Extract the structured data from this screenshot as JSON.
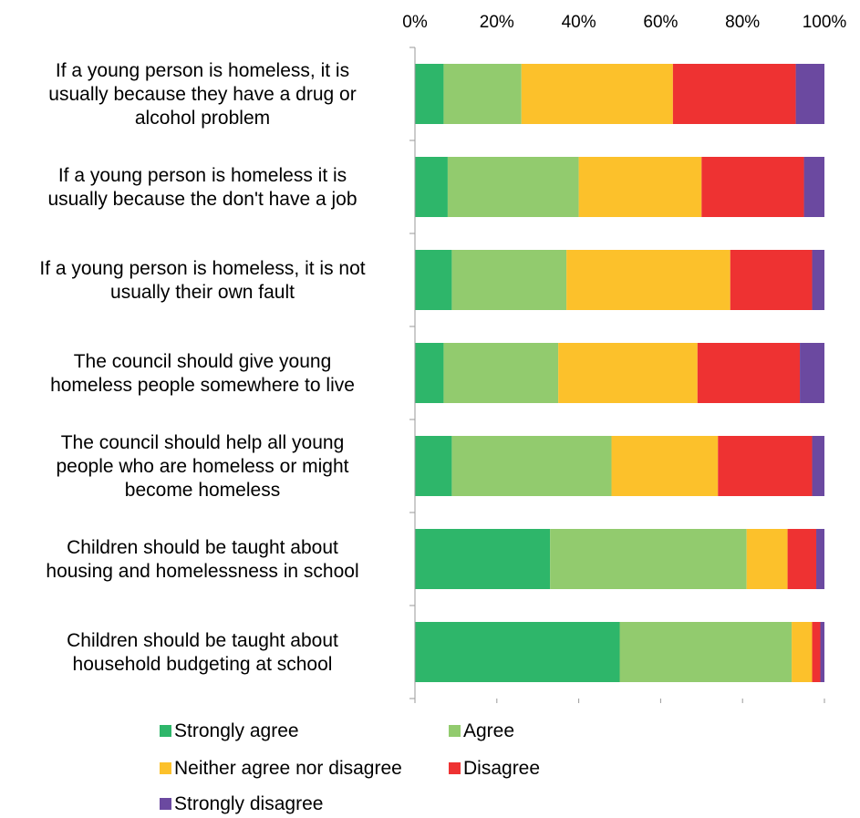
{
  "chart_data": {
    "type": "bar",
    "orientation": "horizontal",
    "stacked": "percent",
    "categories": [
      "If a young person is homeless, it is usually because they have a drug or alcohol problem",
      "If a young person is homeless it is usually because the don't have a job",
      "If a young person is homeless, it is not usually their own fault",
      "The council should give young homeless people somewhere to live",
      "The council should help all young people who are homeless or might become homeless",
      "Children should be taught about housing and homelessness in school",
      "Children should be taught about household budgeting at school"
    ],
    "category_lines": [
      [
        "If a young person is homeless, it is",
        "usually because they have a drug or",
        "alcohol problem"
      ],
      [
        "If a young person is homeless it is",
        "usually because the don't have a job"
      ],
      [
        "If a young person is homeless, it is not",
        "usually their own fault"
      ],
      [
        "The council should give young",
        "homeless people somewhere to live"
      ],
      [
        "The council should help all young",
        "people who are homeless or might",
        "become homeless"
      ],
      [
        "Children should be taught about",
        "housing and homelessness in school"
      ],
      [
        "Children should be taught about",
        "household budgeting at school"
      ]
    ],
    "series": [
      {
        "name": "Strongly agree",
        "color": "#2eb66a",
        "values": [
          7,
          8,
          9,
          7,
          9,
          33,
          50
        ]
      },
      {
        "name": "Agree",
        "color": "#92cb6e",
        "values": [
          19,
          32,
          28,
          28,
          39,
          48,
          42
        ]
      },
      {
        "name": "Neither agree nor disagree",
        "color": "#fcc12b",
        "values": [
          37,
          30,
          40,
          34,
          26,
          10,
          5
        ]
      },
      {
        "name": "Disagree",
        "color": "#ee3232",
        "values": [
          30,
          25,
          20,
          25,
          23,
          7,
          2
        ]
      },
      {
        "name": "Strongly disagree",
        "color": "#6b49a0",
        "values": [
          7,
          5,
          3,
          6,
          3,
          2,
          1
        ]
      }
    ],
    "x_ticks": [
      "0%",
      "20%",
      "40%",
      "60%",
      "80%",
      "100%"
    ],
    "xlim": [
      0,
      100
    ],
    "x_axis_position": "top",
    "grid": false,
    "legend_position": "bottom"
  }
}
